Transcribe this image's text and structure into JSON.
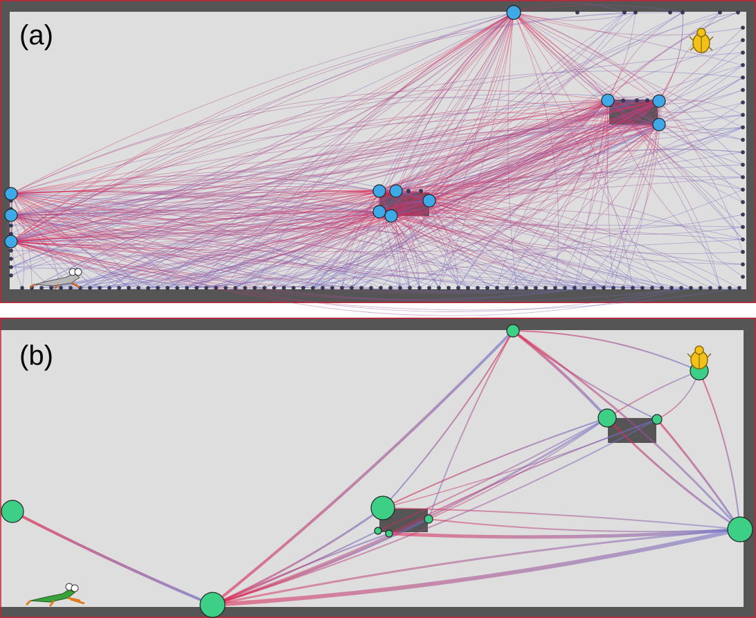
{
  "panels": [
    {
      "label": "(a)"
    },
    {
      "label": "(b)"
    }
  ],
  "colors": {
    "background": "#dedede",
    "wall": "#555555",
    "frame": "#cc2233",
    "edge_red": "#e0234e",
    "edge_blue": "#6a6fc8",
    "node_a": "#3fa9e8",
    "node_b": "#3dcf86",
    "goal": "#f2c21a",
    "agent": "#3aa23a"
  },
  "icons": {
    "agent": "frog-icon",
    "goal": "scarab-icon"
  }
}
